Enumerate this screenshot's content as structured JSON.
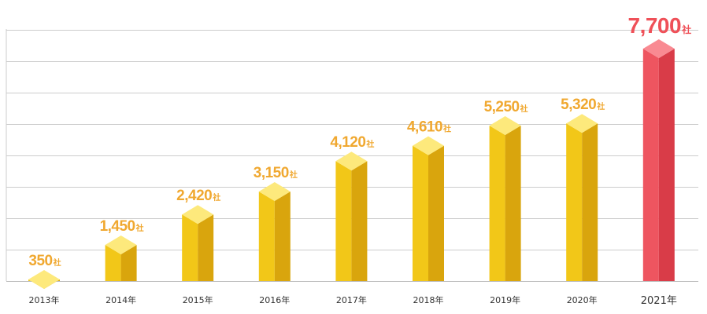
{
  "chart_data": {
    "type": "bar",
    "title": "",
    "xlabel": "",
    "ylabel": "",
    "ylim": [
      0,
      8000
    ],
    "grid": true,
    "legend": "none",
    "categories": [
      "2013年",
      "2014年",
      "2015年",
      "2016年",
      "2017年",
      "2018年",
      "2019年",
      "2020年",
      "2021年"
    ],
    "values": [
      350,
      1450,
      2420,
      3150,
      4120,
      4610,
      5250,
      5320,
      7700
    ],
    "value_labels": [
      "350",
      "1,450",
      "2,420",
      "3,150",
      "4,120",
      "4,610",
      "5,250",
      "5,320",
      "7,700"
    ],
    "unit": "社",
    "highlight_index": 8,
    "colors": {
      "bar_front": "#f2c718",
      "bar_side": "#d9a50d",
      "bar_top": "#fde97c",
      "label": "#f0a830",
      "highlight_front": "#ee5560",
      "highlight_side": "#d93c48",
      "highlight_top": "#f98a92",
      "highlight_label": "#ef5058",
      "grid": "#cccccc"
    }
  }
}
